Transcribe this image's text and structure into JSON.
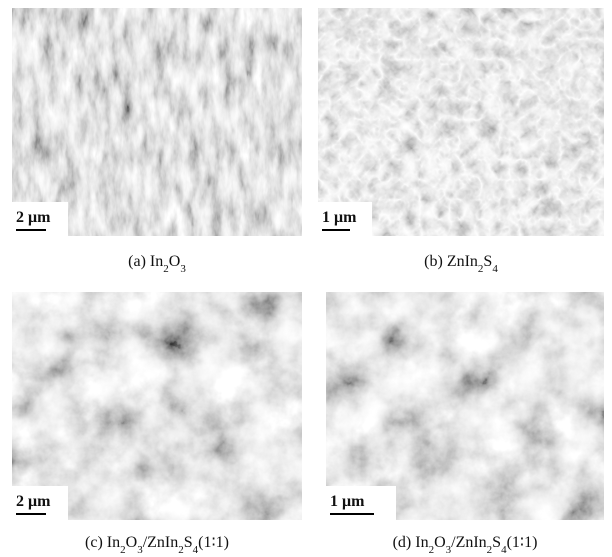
{
  "panels": [
    {
      "scale": "2 μm",
      "caption": [
        {
          "text": "(a) In"
        },
        {
          "sub": "2"
        },
        {
          "text": "O"
        },
        {
          "sub": "3"
        }
      ]
    },
    {
      "scale": "1 μm",
      "caption": [
        {
          "text": "(b) ZnIn"
        },
        {
          "sub": "2"
        },
        {
          "text": "S"
        },
        {
          "sub": "4"
        }
      ]
    },
    {
      "scale": "2 μm",
      "caption": [
        {
          "text": "(c) In"
        },
        {
          "sub": "2"
        },
        {
          "text": "O"
        },
        {
          "sub": "3"
        },
        {
          "text": "/ZnIn"
        },
        {
          "sub": "2"
        },
        {
          "text": "S"
        },
        {
          "sub": "4"
        },
        {
          "text": "(1∶1)"
        }
      ]
    },
    {
      "scale": "1 μm",
      "caption": [
        {
          "text": "(d) In"
        },
        {
          "sub": "2"
        },
        {
          "text": "O"
        },
        {
          "sub": "3"
        },
        {
          "text": "/ZnIn"
        },
        {
          "sub": "2"
        },
        {
          "text": "S"
        },
        {
          "sub": "4"
        },
        {
          "text": "(1∶1)"
        }
      ]
    }
  ]
}
